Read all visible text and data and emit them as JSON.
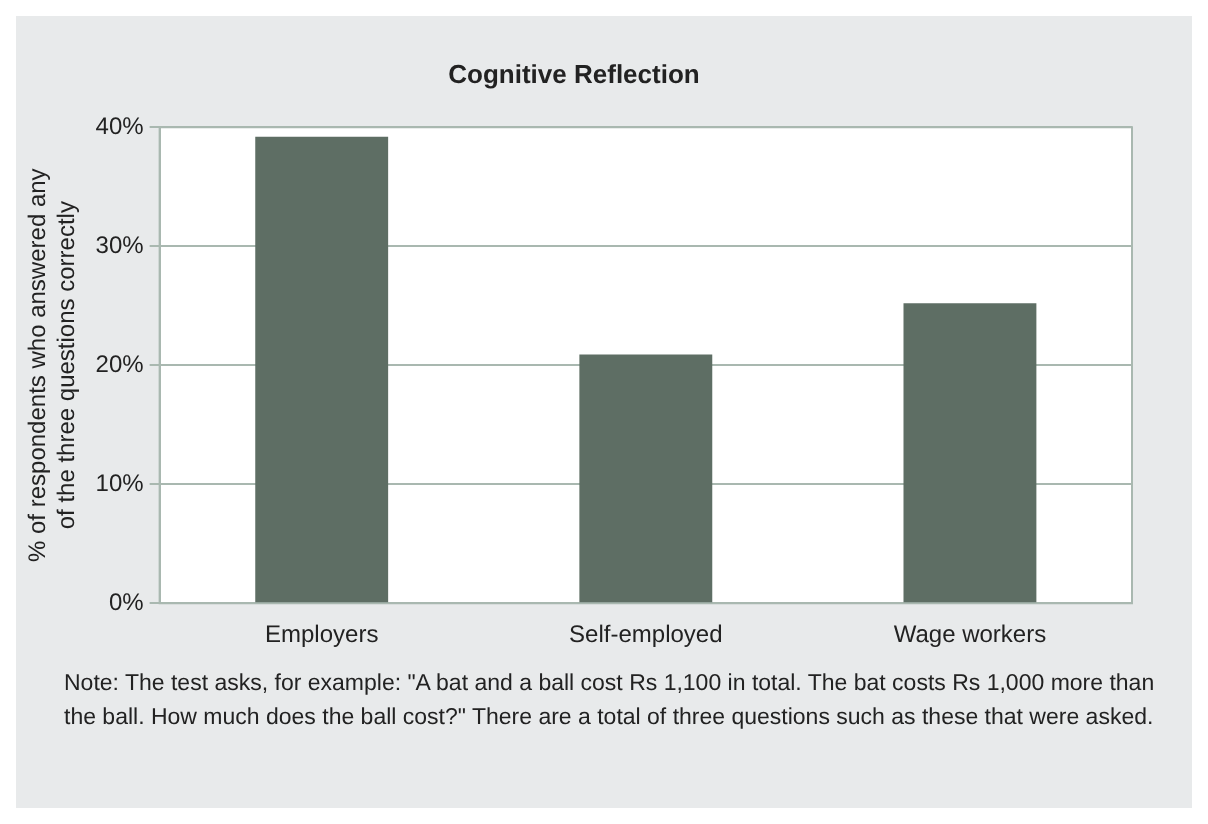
{
  "chart_data": {
    "type": "bar",
    "title": "Cognitive Reflection",
    "ylabel": "% of respondents who answered any of the three questions correctly",
    "categories": [
      "Employers",
      "Self-employed",
      "Wage workers"
    ],
    "values": [
      39.2,
      20.9,
      25.2
    ],
    "color": "#5e6e64",
    "ylim": [
      0,
      40
    ],
    "yticks": [
      {
        "value": 0,
        "label": "0%"
      },
      {
        "value": 10,
        "label": "10%"
      },
      {
        "value": 20,
        "label": "20%"
      },
      {
        "value": 30,
        "label": "30%"
      },
      {
        "value": 40,
        "label": "40%"
      }
    ],
    "grid": "y",
    "legend": false,
    "annotations": [
      "Note: The test asks, for example: \"A bat and a ball cost Rs 1,100 in total. The bat costs Rs 1,000 more than the ball. How much does the ball cost?\" There are a total of three questions such as these that were asked."
    ]
  }
}
